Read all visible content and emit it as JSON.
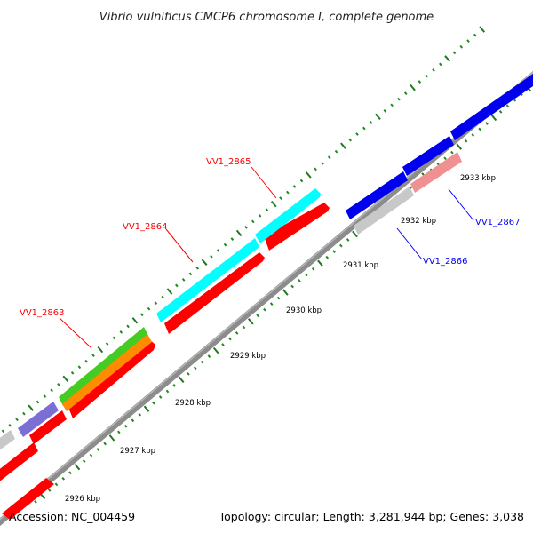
{
  "title": "Vibrio vulnificus CMCP6 chromosome I, complete genome",
  "footer": {
    "accession": "Accession: NC_004459",
    "topology": "Topology: circular; Length: 3,281,944 bp; Genes: 3,038"
  },
  "colors": {
    "backbone": "#8c8c8c",
    "major_tick": "#1f7a1f",
    "minor_tick": "#1f8a1f",
    "label_red": "#ff0000",
    "label_blue": "#0000ff"
  },
  "ticks": [
    {
      "label": "2926 kbp"
    },
    {
      "label": "2927 kbp"
    },
    {
      "label": "2928 kbp"
    },
    {
      "label": "2929 kbp"
    },
    {
      "label": "2930 kbp"
    },
    {
      "label": "2931 kbp"
    },
    {
      "label": "2932 kbp"
    },
    {
      "label": "2933 kbp"
    }
  ],
  "genes": [
    {
      "name": "VV1_2863",
      "color": "#ff0000"
    },
    {
      "name": "VV1_2864",
      "color": "#ff0000"
    },
    {
      "name": "VV1_2865",
      "color": "#ff0000"
    },
    {
      "name": "VV1_2866",
      "color": "#0000ff"
    },
    {
      "name": "VV1_2867",
      "color": "#0000ff"
    }
  ]
}
